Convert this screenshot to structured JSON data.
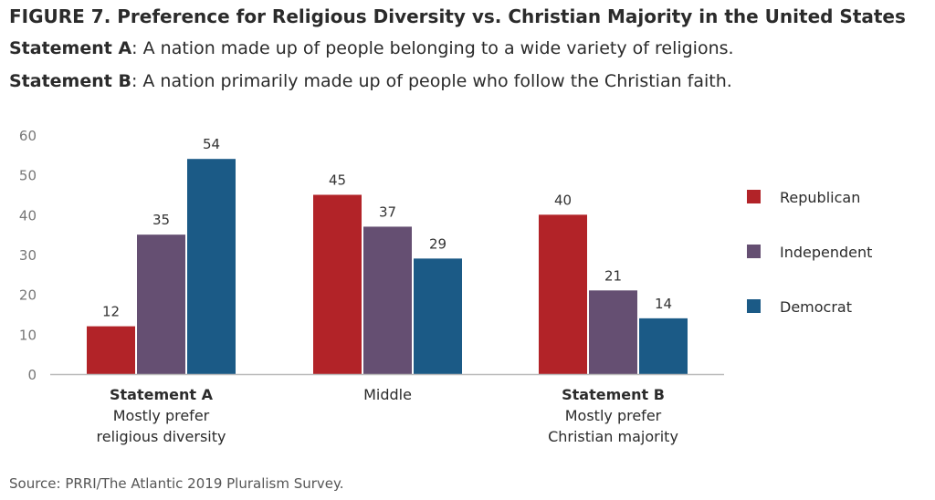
{
  "title": "FIGURE 7. Preference for Religious Diversity vs. Christian Majority in the United States",
  "statements": [
    {
      "label": "Statement A",
      "text": ": A nation made up of people belonging to a wide variety of religions."
    },
    {
      "label": "Statement B",
      "text": ": A nation primarily made up of people who follow the Christian faith."
    }
  ],
  "source": "Source: PRRI/The Atlantic 2019 Pluralism Survey.",
  "chart_data": {
    "type": "bar",
    "categories": [
      {
        "bold": "Statement A",
        "lines": [
          "Mostly prefer",
          "religious diversity"
        ]
      },
      {
        "bold": "",
        "lines": [
          "Middle"
        ]
      },
      {
        "bold": "Statement B",
        "lines": [
          "Mostly prefer",
          "Christian majority"
        ]
      }
    ],
    "series": [
      {
        "name": "Republican",
        "color": "#b22328",
        "values": [
          12,
          45,
          40
        ]
      },
      {
        "name": "Independent",
        "color": "#654f72",
        "values": [
          35,
          37,
          21
        ]
      },
      {
        "name": "Democrat",
        "color": "#1b5a86",
        "values": [
          54,
          29,
          14
        ]
      }
    ],
    "yticks": [
      0,
      10,
      20,
      30,
      40,
      50,
      60
    ],
    "ylim": [
      0,
      60
    ],
    "grid": false,
    "legend_position": "right"
  }
}
